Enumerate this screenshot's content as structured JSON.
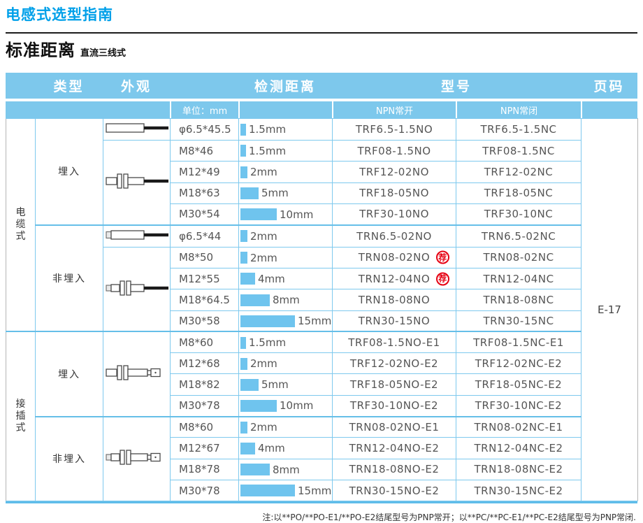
{
  "page": {
    "title": "电感式选型指南",
    "section_title": "标准距离",
    "section_subtitle": "直流三线式",
    "footnote": "注:以**PO/**PO-E1/**PO-E2结尾型号为PNP常开；以**PC/**PC-E1/**PC-E2结尾型号为PNP常闭."
  },
  "colors": {
    "accent_blue": "#00a0e9",
    "header_band_blue": "#7dc8ec",
    "bar_blue": "#6fc4ee",
    "grid_line_blue": "#7ec9ee",
    "badge_red": "#e60012"
  },
  "table": {
    "headers": [
      "类型",
      "外观",
      "检测距离",
      "型号",
      "页码"
    ],
    "subheaders": {
      "unit": "单位：mm",
      "npn_no": "NPN常开",
      "npn_nc": "NPN常闭"
    },
    "recommend_badge": "荐",
    "page_code": "E-17",
    "groups": [
      {
        "type": "电缆式",
        "subgroups": [
          {
            "mount": "埋入",
            "appearance": [
              {
                "span": 1,
                "kind": "smooth-cable"
              },
              {
                "span": 4,
                "kind": "threaded-cable"
              }
            ],
            "rows": [
              {
                "size": "φ6.5*45.5",
                "distance_mm": 1.5,
                "distance_label": "1.5mm",
                "npn_no": "TRF6.5-1.5NO",
                "npn_nc": "TRF6.5-1.5NC",
                "recommended": false
              },
              {
                "size": "M8*46",
                "distance_mm": 1.5,
                "distance_label": "1.5mm",
                "npn_no": "TRF08-1.5NO",
                "npn_nc": "TRF08-1.5NC",
                "recommended": false
              },
              {
                "size": "M12*49",
                "distance_mm": 2,
                "distance_label": "2mm",
                "npn_no": "TRF12-02NO",
                "npn_nc": "TRF12-02NC",
                "recommended": false
              },
              {
                "size": "M18*63",
                "distance_mm": 5,
                "distance_label": "5mm",
                "npn_no": "TRF18-05NO",
                "npn_nc": "TRF18-05NC",
                "recommended": false
              },
              {
                "size": "M30*54",
                "distance_mm": 10,
                "distance_label": "10mm",
                "npn_no": "TRF30-10NO",
                "npn_nc": "TRF30-10NC",
                "recommended": false
              }
            ]
          },
          {
            "mount": "非埋入",
            "appearance": [
              {
                "span": 1,
                "kind": "smooth-tip-cable"
              },
              {
                "span": 4,
                "kind": "threaded-tip-cable"
              }
            ],
            "rows": [
              {
                "size": "φ6.5*44",
                "distance_mm": 2,
                "distance_label": "2mm",
                "npn_no": "TRN6.5-02NO",
                "npn_nc": "TRN6.5-02NC",
                "recommended": false
              },
              {
                "size": "M8*50",
                "distance_mm": 2,
                "distance_label": "2mm",
                "npn_no": "TRN08-02NO",
                "npn_nc": "TRN08-02NC",
                "recommended": true
              },
              {
                "size": "M12*55",
                "distance_mm": 4,
                "distance_label": "4mm",
                "npn_no": "TRN12-04NO",
                "npn_nc": "TRN12-04NC",
                "recommended": true
              },
              {
                "size": "M18*64.5",
                "distance_mm": 8,
                "distance_label": "8mm",
                "npn_no": "TRN18-08NO",
                "npn_nc": "TRN18-08NC",
                "recommended": false
              },
              {
                "size": "M30*58",
                "distance_mm": 15,
                "distance_label": "15mm",
                "npn_no": "TRN30-15NO",
                "npn_nc": "TRN30-15NC",
                "recommended": false
              }
            ]
          }
        ]
      },
      {
        "type": "接插式",
        "subgroups": [
          {
            "mount": "埋入",
            "appearance": [
              {
                "span": 4,
                "kind": "threaded-connector"
              }
            ],
            "rows": [
              {
                "size": "M8*60",
                "distance_mm": 1.5,
                "distance_label": "1.5mm",
                "npn_no": "TRF08-1.5NO-E1",
                "npn_nc": "TRF08-1.5NC-E1",
                "recommended": false
              },
              {
                "size": "M12*68",
                "distance_mm": 2,
                "distance_label": "2mm",
                "npn_no": "TRF12-02NO-E2",
                "npn_nc": "TRF12-02NC-E2",
                "recommended": false
              },
              {
                "size": "M18*82",
                "distance_mm": 5,
                "distance_label": "5mm",
                "npn_no": "TRF18-05NO-E2",
                "npn_nc": "TRF18-05NC-E2",
                "recommended": false
              },
              {
                "size": "M30*78",
                "distance_mm": 10,
                "distance_label": "10mm",
                "npn_no": "TRF30-10NO-E2",
                "npn_nc": "TRF30-10NC-E2",
                "recommended": false
              }
            ]
          },
          {
            "mount": "非埋入",
            "appearance": [
              {
                "span": 4,
                "kind": "threaded-tip-connector"
              }
            ],
            "rows": [
              {
                "size": "M8*60",
                "distance_mm": 2,
                "distance_label": "2mm",
                "npn_no": "TRN08-02NO-E1",
                "npn_nc": "TRN08-02NC-E1",
                "recommended": false
              },
              {
                "size": "M12*67",
                "distance_mm": 4,
                "distance_label": "4mm",
                "npn_no": "TRN12-04NO-E2",
                "npn_nc": "TRN12-04NC-E2",
                "recommended": false
              },
              {
                "size": "M18*78",
                "distance_mm": 8,
                "distance_label": "8mm",
                "npn_no": "TRN18-08NO-E2",
                "npn_nc": "TRN18-08NC-E2",
                "recommended": false
              },
              {
                "size": "M30*78",
                "distance_mm": 15,
                "distance_label": "15mm",
                "npn_no": "TRN30-15NO-E2",
                "npn_nc": "TRN30-15NC-E2",
                "recommended": false
              }
            ]
          }
        ]
      }
    ]
  }
}
